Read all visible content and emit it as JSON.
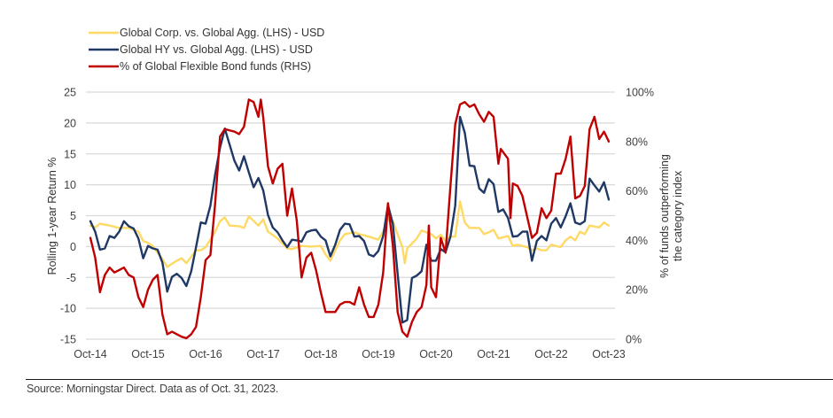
{
  "chart_data": {
    "type": "line",
    "title": "",
    "x_unit": "months since Oct-2014",
    "x_tick_labels": [
      "Oct-14",
      "Oct-15",
      "Oct-16",
      "Oct-17",
      "Oct-18",
      "Oct-19",
      "Oct-20",
      "Oct-21",
      "Oct-22",
      "Oct-23"
    ],
    "x_range": [
      0,
      108
    ],
    "left_axis": {
      "label": "Rolling 1-year Return %",
      "range": [
        -15,
        25
      ],
      "ticks": [
        "25",
        "20",
        "15",
        "10",
        "5",
        "0",
        "-5",
        "-10",
        "-15"
      ],
      "tick_values": [
        25,
        20,
        15,
        10,
        5,
        0,
        -5,
        -10,
        -15
      ]
    },
    "right_axis": {
      "label_line1": "% of funds outperforming",
      "label_line2": "the category index",
      "range": [
        0,
        100
      ],
      "ticks": [
        "100%",
        "80%",
        "60%",
        "40%",
        "20%",
        "0%"
      ],
      "tick_values": [
        100,
        80,
        60,
        40,
        20,
        0
      ]
    },
    "grid": true,
    "legend_position": "top-left",
    "series": [
      {
        "name": "Global Corp. vs. Global Agg. (LHS) - USD",
        "axis": "left",
        "color": "#ffd966",
        "points": [
          [
            0,
            3.4
          ],
          [
            1,
            3.1
          ],
          [
            2,
            3.7
          ],
          [
            4,
            3.4
          ],
          [
            6,
            3.0
          ],
          [
            8,
            3.0
          ],
          [
            10,
            2.4
          ],
          [
            11,
            0.9
          ],
          [
            12,
            0.6
          ],
          [
            13,
            0.1
          ],
          [
            14,
            -1.0
          ],
          [
            15,
            -2.0
          ],
          [
            16,
            -3.3
          ],
          [
            18,
            -2.3
          ],
          [
            19,
            -1.9
          ],
          [
            20,
            -2.7
          ],
          [
            22,
            -0.6
          ],
          [
            23,
            -0.6
          ],
          [
            24,
            -0.1
          ],
          [
            26,
            2.4
          ],
          [
            27,
            4.1
          ],
          [
            28,
            4.7
          ],
          [
            29,
            3.4
          ],
          [
            31,
            3.3
          ],
          [
            32,
            3.0
          ],
          [
            33,
            4.9
          ],
          [
            35,
            3.4
          ],
          [
            36,
            4.4
          ],
          [
            37,
            2.4
          ],
          [
            39,
            1.3
          ],
          [
            41,
            -0.3
          ],
          [
            42,
            -0.4
          ],
          [
            44,
            0.1
          ],
          [
            46,
            0.0
          ],
          [
            48,
            0.1
          ],
          [
            49,
            -1.3
          ],
          [
            50,
            -2.3
          ],
          [
            52,
            1.0
          ],
          [
            53,
            2.0
          ],
          [
            55,
            2.3
          ],
          [
            56,
            2.0
          ],
          [
            58,
            1.6
          ],
          [
            60,
            1.1
          ],
          [
            61,
            2.4
          ],
          [
            62,
            4.4
          ],
          [
            63,
            4.1
          ],
          [
            65,
            -0.1
          ],
          [
            65.5,
            -2.7
          ],
          [
            66,
            -0.3
          ],
          [
            68,
            1.3
          ],
          [
            69,
            2.6
          ],
          [
            71,
            2.0
          ],
          [
            72,
            1.3
          ],
          [
            73,
            1.9
          ],
          [
            74,
            0.9
          ],
          [
            75,
            1.6
          ],
          [
            76,
            1.6
          ],
          [
            77,
            7.3
          ],
          [
            78,
            3.9
          ],
          [
            79,
            3.0
          ],
          [
            81,
            3.0
          ],
          [
            82,
            2.0
          ],
          [
            83,
            2.3
          ],
          [
            84,
            2.7
          ],
          [
            85,
            1.3
          ],
          [
            87,
            1.7
          ],
          [
            88,
            0.1
          ],
          [
            89,
            0.3
          ],
          [
            91,
            -0.1
          ],
          [
            92,
            -0.6
          ],
          [
            93,
            -0.3
          ],
          [
            94,
            -0.6
          ],
          [
            95,
            -0.6
          ],
          [
            96,
            0.3
          ],
          [
            98,
            -0.1
          ],
          [
            99,
            1.0
          ],
          [
            100,
            1.6
          ],
          [
            101,
            1.0
          ],
          [
            102,
            2.4
          ],
          [
            103,
            2.0
          ],
          [
            104,
            3.4
          ],
          [
            106,
            3.1
          ],
          [
            107,
            3.9
          ],
          [
            108,
            3.4
          ]
        ]
      },
      {
        "name": "Global HY vs. Global Agg. (LHS) - USD",
        "axis": "left",
        "color": "#1f3864",
        "points": [
          [
            0,
            4.1
          ],
          [
            1,
            2.4
          ],
          [
            2,
            -0.5
          ],
          [
            3,
            -0.3
          ],
          [
            4,
            1.7
          ],
          [
            5,
            1.4
          ],
          [
            6,
            2.4
          ],
          [
            7,
            4.1
          ],
          [
            8,
            3.3
          ],
          [
            9,
            2.9
          ],
          [
            10,
            1.3
          ],
          [
            11,
            -1.9
          ],
          [
            12,
            0.1
          ],
          [
            13,
            -0.3
          ],
          [
            14,
            -0.5
          ],
          [
            15,
            -2.6
          ],
          [
            16,
            -7.3
          ],
          [
            17,
            -4.9
          ],
          [
            18,
            -4.4
          ],
          [
            19,
            -5.1
          ],
          [
            20,
            -6.4
          ],
          [
            21,
            -4.0
          ],
          [
            22,
            -0.1
          ],
          [
            23,
            3.9
          ],
          [
            24,
            3.7
          ],
          [
            25,
            6.6
          ],
          [
            26,
            11.7
          ],
          [
            27,
            16.0
          ],
          [
            28,
            19.1
          ],
          [
            29,
            16.5
          ],
          [
            30,
            13.9
          ],
          [
            31,
            12.3
          ],
          [
            32,
            14.6
          ],
          [
            33,
            12.0
          ],
          [
            34,
            9.6
          ],
          [
            35,
            11.1
          ],
          [
            36,
            9.1
          ],
          [
            37,
            5.1
          ],
          [
            38,
            3.1
          ],
          [
            39,
            2.3
          ],
          [
            40,
            1.0
          ],
          [
            41,
            -0.1
          ],
          [
            42,
            1.1
          ],
          [
            43,
            1.0
          ],
          [
            44,
            0.8
          ],
          [
            45,
            2.3
          ],
          [
            46,
            2.6
          ],
          [
            47,
            2.7
          ],
          [
            48,
            1.6
          ],
          [
            49,
            1.0
          ],
          [
            50,
            -1.6
          ],
          [
            51,
            0.3
          ],
          [
            52,
            2.7
          ],
          [
            53,
            3.7
          ],
          [
            54,
            3.6
          ],
          [
            55,
            1.6
          ],
          [
            56,
            1.7
          ],
          [
            57,
            0.9
          ],
          [
            58,
            -1.3
          ],
          [
            59,
            -1.6
          ],
          [
            60,
            -0.7
          ],
          [
            61,
            1.7
          ],
          [
            62,
            6.7
          ],
          [
            63,
            3.7
          ],
          [
            64,
            -4.4
          ],
          [
            65,
            -12.3
          ],
          [
            66,
            -11.9
          ],
          [
            67,
            -5.1
          ],
          [
            68,
            -4.7
          ],
          [
            69,
            -4.0
          ],
          [
            70,
            0.3
          ],
          [
            71,
            -2.3
          ],
          [
            72,
            -2.3
          ],
          [
            73,
            -0.4
          ],
          [
            74,
            -0.9
          ],
          [
            75,
            1.6
          ],
          [
            76,
            6.6
          ],
          [
            77,
            21.0
          ],
          [
            78,
            18.4
          ],
          [
            79,
            13.1
          ],
          [
            80,
            13.0
          ],
          [
            81,
            9.4
          ],
          [
            82,
            8.7
          ],
          [
            83,
            10.9
          ],
          [
            84,
            10.1
          ],
          [
            85,
            5.6
          ],
          [
            86,
            6.0
          ],
          [
            87,
            4.6
          ],
          [
            88,
            1.6
          ],
          [
            89,
            1.7
          ],
          [
            90,
            2.4
          ],
          [
            91,
            2.4
          ],
          [
            92,
            -2.3
          ],
          [
            93,
            0.9
          ],
          [
            94,
            1.7
          ],
          [
            95,
            1.0
          ],
          [
            96,
            3.7
          ],
          [
            97,
            4.6
          ],
          [
            98,
            3.1
          ],
          [
            99,
            4.9
          ],
          [
            100,
            7.0
          ],
          [
            101,
            3.9
          ],
          [
            102,
            3.6
          ],
          [
            103,
            4.1
          ],
          [
            104,
            11.0
          ],
          [
            105,
            9.9
          ],
          [
            106,
            8.9
          ],
          [
            107,
            10.4
          ],
          [
            108,
            7.6
          ]
        ]
      },
      {
        "name": "% of Global Flexible Bond funds (RHS)",
        "axis": "right",
        "color": "#c00000",
        "points": [
          [
            0,
            41
          ],
          [
            1,
            33
          ],
          [
            2,
            19
          ],
          [
            3,
            26
          ],
          [
            4,
            29
          ],
          [
            5,
            27
          ],
          [
            6,
            28
          ],
          [
            7,
            29
          ],
          [
            8,
            26
          ],
          [
            9,
            25
          ],
          [
            10,
            17
          ],
          [
            11,
            13
          ],
          [
            12,
            20
          ],
          [
            13,
            24
          ],
          [
            14,
            26
          ],
          [
            15,
            10
          ],
          [
            16,
            2
          ],
          [
            17,
            3
          ],
          [
            19,
            1
          ],
          [
            20,
            0.4
          ],
          [
            21,
            2
          ],
          [
            22,
            5
          ],
          [
            23,
            17
          ],
          [
            24,
            32
          ],
          [
            25,
            34
          ],
          [
            26,
            55
          ],
          [
            27,
            82
          ],
          [
            28,
            85
          ],
          [
            30,
            84
          ],
          [
            31,
            83
          ],
          [
            32,
            86
          ],
          [
            33,
            97
          ],
          [
            34,
            96
          ],
          [
            35,
            90
          ],
          [
            35.5,
            97
          ],
          [
            36,
            90
          ],
          [
            37,
            70
          ],
          [
            38,
            63
          ],
          [
            39,
            69
          ],
          [
            40,
            71
          ],
          [
            41,
            50
          ],
          [
            42,
            61
          ],
          [
            43,
            48
          ],
          [
            44,
            25
          ],
          [
            45,
            33
          ],
          [
            46,
            35
          ],
          [
            47,
            28
          ],
          [
            48,
            19
          ],
          [
            49,
            11
          ],
          [
            50,
            11
          ],
          [
            51,
            11
          ],
          [
            52,
            14
          ],
          [
            53,
            15
          ],
          [
            54,
            15
          ],
          [
            55,
            14
          ],
          [
            56,
            21
          ],
          [
            57,
            14
          ],
          [
            58,
            9
          ],
          [
            59,
            9
          ],
          [
            60,
            14
          ],
          [
            61,
            27
          ],
          [
            62,
            55
          ],
          [
            63,
            38
          ],
          [
            64,
            11
          ],
          [
            65,
            3
          ],
          [
            66,
            1
          ],
          [
            67,
            7
          ],
          [
            68,
            11
          ],
          [
            69,
            13
          ],
          [
            70,
            22
          ],
          [
            70.5,
            46
          ],
          [
            71,
            21
          ],
          [
            72,
            17
          ],
          [
            73,
            41
          ],
          [
            74,
            35
          ],
          [
            75,
            62
          ],
          [
            76,
            87
          ],
          [
            77,
            95
          ],
          [
            78,
            96
          ],
          [
            79,
            94
          ],
          [
            80,
            95
          ],
          [
            81,
            91
          ],
          [
            82,
            88
          ],
          [
            83,
            92
          ],
          [
            84,
            90
          ],
          [
            85,
            71
          ],
          [
            85.5,
            77
          ],
          [
            87,
            73
          ],
          [
            87.5,
            49
          ],
          [
            88,
            63
          ],
          [
            89,
            62
          ],
          [
            90,
            58
          ],
          [
            92,
            41
          ],
          [
            93,
            43
          ],
          [
            94,
            53
          ],
          [
            95,
            49
          ],
          [
            96,
            52
          ],
          [
            97,
            67
          ],
          [
            98,
            67
          ],
          [
            99,
            73
          ],
          [
            100,
            82
          ],
          [
            101,
            57
          ],
          [
            102,
            58
          ],
          [
            103,
            62
          ],
          [
            104,
            85
          ],
          [
            105,
            90
          ],
          [
            106,
            81
          ],
          [
            107,
            84
          ],
          [
            108,
            80
          ]
        ]
      }
    ]
  },
  "footer": {
    "source": "Source: Morningstar Direct. Data as of Oct. 31, 2023."
  }
}
